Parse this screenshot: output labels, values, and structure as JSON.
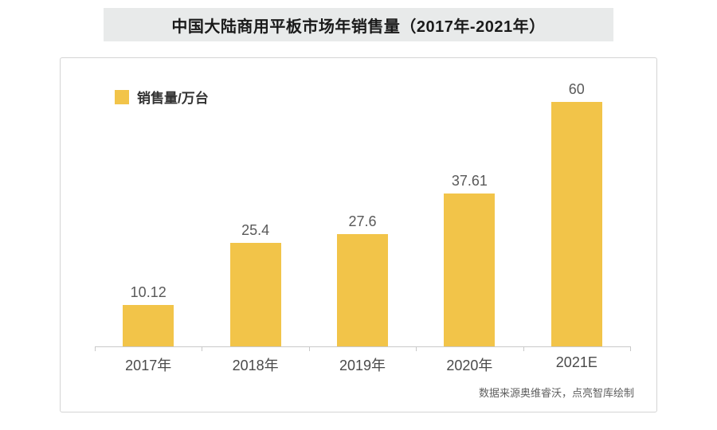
{
  "title": {
    "text": "中国大陆商用平板市场年销售量（2017年-2021年）"
  },
  "legend": {
    "label": "销售量/万台"
  },
  "footer": {
    "text": "数据来源奥维睿沃，点亮智库绘制"
  },
  "colors": {
    "bar": "#F2C449",
    "banner_bg": "#E8EAEA",
    "axis": "#c9c9c9",
    "value_label": "#595959",
    "x_label": "#4a4a4a"
  },
  "chart_data": {
    "type": "bar",
    "title": "中国大陆商用平板市场年销售量（2017年-2021年）",
    "categories": [
      "2017年",
      "2018年",
      "2019年",
      "2020年",
      "2021E"
    ],
    "values": [
      10.12,
      25.4,
      27.6,
      37.61,
      60
    ],
    "value_labels": [
      "10.12",
      "25.4",
      "27.6",
      "37.61",
      "60"
    ],
    "series_name": "销售量/万台",
    "xlabel": "",
    "ylabel": "销售量/万台",
    "ylim": [
      0,
      60
    ],
    "grid": false,
    "legend_position": "top-left",
    "bar_color": "#F2C449",
    "annotations": [
      "数据来源奥维睿沃，点亮智库绘制"
    ]
  }
}
